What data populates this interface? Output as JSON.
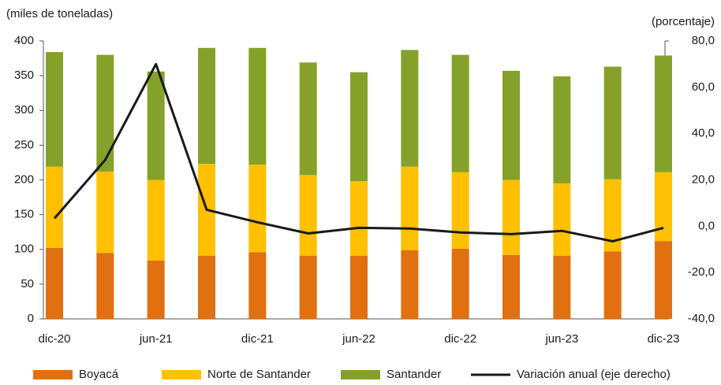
{
  "chart_data": {
    "type": "bar",
    "ylabel": "(miles de toneladas)",
    "y2label": "(porcentaje)",
    "categories": [
      "dic-20",
      null,
      "jun-21",
      null,
      "dic-21",
      null,
      "jun-22",
      null,
      "dic-22",
      null,
      "jun-23",
      null,
      "dic-23"
    ],
    "stacked": true,
    "series": [
      {
        "name": "Boyacá",
        "color": "#e07010",
        "values": [
          102,
          95,
          84,
          91,
          96,
          91,
          91,
          99,
          101,
          92,
          91,
          97,
          112
        ]
      },
      {
        "name": "Norte de Santander",
        "color": "#ffc000",
        "values": [
          117,
          117,
          116,
          132,
          126,
          116,
          107,
          120,
          110,
          108,
          104,
          104,
          99
        ]
      },
      {
        "name": "Santander",
        "color": "#86a12a",
        "values": [
          165,
          168,
          156,
          167,
          168,
          162,
          157,
          168,
          169,
          157,
          154,
          162,
          168
        ]
      },
      {
        "name": "Variación anual (eje derecho)",
        "color": "#1a1a1a",
        "type": "line",
        "axis": "y2",
        "values": [
          3.4,
          28.6,
          70,
          7.1,
          1.7,
          -3.1,
          -0.7,
          -1,
          -2.7,
          -3.4,
          -2,
          -6.5,
          -0.7
        ]
      }
    ],
    "ylim": [
      0,
      400
    ],
    "yticks": [
      0,
      50,
      100,
      150,
      200,
      250,
      300,
      350,
      400
    ],
    "y2lim": [
      -40,
      80
    ],
    "y2ticks": [
      {
        "value": -40,
        "label": "-40,0"
      },
      {
        "value": -20,
        "label": "-20,0"
      },
      {
        "value": 0,
        "label": "0,0"
      },
      {
        "value": 20,
        "label": "20,0"
      },
      {
        "value": 40,
        "label": "40,0"
      },
      {
        "value": 60,
        "label": "60,0"
      },
      {
        "value": 80,
        "label": "80,0"
      }
    ],
    "legend": "bottom"
  }
}
